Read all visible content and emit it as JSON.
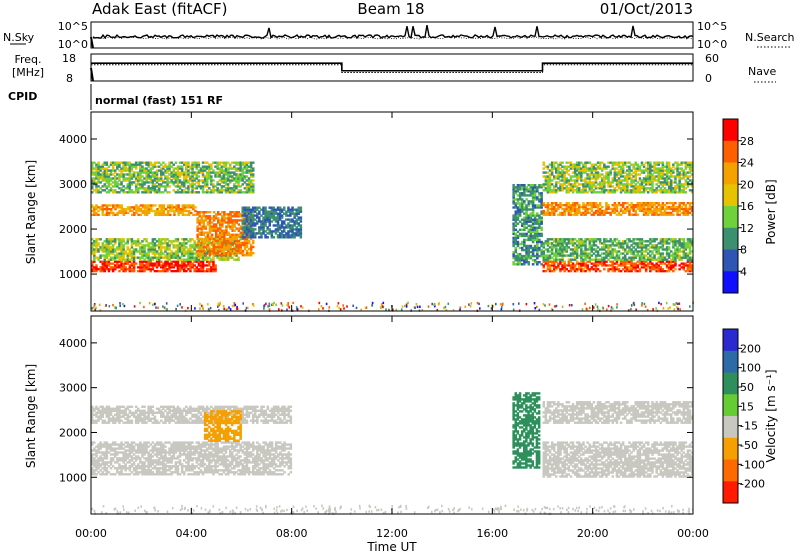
{
  "header": {
    "title": "Adak East (fitACF)",
    "beam": "Beam 18",
    "date": "01/Oct/2013"
  },
  "noise_panel": {
    "left_label": "N.Sky",
    "right_label": "N.Search",
    "ticks": [
      "10^5",
      "10^0"
    ]
  },
  "freq_panel": {
    "left_label_1": "Freq.",
    "left_label_2": "[MHz]",
    "left_ticks": [
      "18",
      "8"
    ],
    "right_label": "Nave",
    "right_ticks": [
      "60",
      "0"
    ],
    "cpid_label": "CPID",
    "mode_text": "normal (fast) 151 RF"
  },
  "chart_data": [
    {
      "type": "line",
      "name": "frequency-nave-timeline",
      "x_unit": "hours UT",
      "xlim": [
        0,
        24
      ],
      "freq_ylim": [
        8,
        18
      ],
      "nave_ylim": [
        0,
        60
      ],
      "freq_steps": [
        {
          "x": 0,
          "y": 14.6
        },
        {
          "x": 10,
          "y": 11.8
        },
        {
          "x": 18,
          "y": 14.6
        },
        {
          "x": 24,
          "y": 14.6
        }
      ],
      "nave_steps": [
        {
          "x": 0,
          "y": 36
        },
        {
          "x": 10,
          "y": 19
        },
        {
          "x": 18,
          "y": 36
        },
        {
          "x": 24,
          "y": 36
        }
      ]
    },
    {
      "type": "heatmap",
      "name": "power",
      "ylabel": "Slant Range [km]",
      "y_ticks": [
        "4000",
        "3000",
        "2000",
        "1000"
      ],
      "ylim": [
        180,
        4600
      ],
      "colorbar_label": "Power [dB]",
      "colorbar_ticks": [
        "28",
        "24",
        "20",
        "16",
        "12",
        "8",
        "4"
      ],
      "colorbar_colors": [
        "#ff0000",
        "#ff5f00",
        "#f5a200",
        "#e6c200",
        "#6fd13b",
        "#3c8f6f",
        "#2f56b4",
        "#1010ff"
      ],
      "bands": [
        {
          "x0": 0.0,
          "x1": 5.0,
          "r0": 1050,
          "r1": 1300,
          "value": 26
        },
        {
          "x0": 0.0,
          "x1": 6.0,
          "r0": 1300,
          "r1": 1800,
          "value": 14
        },
        {
          "x0": 0.0,
          "x1": 4.2,
          "r0": 2300,
          "r1": 2550,
          "value": 20
        },
        {
          "x0": 4.2,
          "x1": 6.5,
          "r0": 1400,
          "r1": 2400,
          "value": 22
        },
        {
          "x0": 6.0,
          "x1": 8.4,
          "r0": 1800,
          "r1": 2500,
          "value": 8
        },
        {
          "x0": 0.0,
          "x1": 6.5,
          "r0": 2800,
          "r1": 3500,
          "value": 13
        },
        {
          "x0": 16.8,
          "x1": 18.0,
          "r0": 1200,
          "r1": 3000,
          "value": 10
        },
        {
          "x0": 18.0,
          "x1": 24.0,
          "r0": 1050,
          "r1": 1300,
          "value": 25
        },
        {
          "x0": 18.0,
          "x1": 24.0,
          "r0": 1300,
          "r1": 1800,
          "value": 12
        },
        {
          "x0": 18.0,
          "x1": 24.0,
          "r0": 2300,
          "r1": 2600,
          "value": 21
        },
        {
          "x0": 18.0,
          "x1": 24.0,
          "r0": 2800,
          "r1": 3500,
          "value": 14
        }
      ]
    },
    {
      "type": "heatmap",
      "name": "velocity",
      "ylabel": "Slant Range [km]",
      "y_ticks": [
        "4000",
        "3000",
        "2000",
        "1000"
      ],
      "ylim": [
        180,
        4600
      ],
      "colorbar_label": "Velocity [m s⁻¹]",
      "colorbar_ticks": [
        "200",
        "100",
        "50",
        "15",
        "-15",
        "-50",
        "-100",
        "-200"
      ],
      "colorbar_colors": [
        "#2a2ad0",
        "#2c6aa8",
        "#2f8f5c",
        "#66cc33",
        "#c8c8c0",
        "#f5a000",
        "#ff6a00",
        "#ff1a00"
      ],
      "bands": [
        {
          "x0": 0.0,
          "x1": 8.0,
          "r0": 1050,
          "r1": 1800,
          "value": 0
        },
        {
          "x0": 0.0,
          "x1": 8.0,
          "r0": 2200,
          "r1": 2600,
          "value": 0
        },
        {
          "x0": 4.5,
          "x1": 6.0,
          "r0": 1800,
          "r1": 2500,
          "value": -40
        },
        {
          "x0": 16.8,
          "x1": 17.9,
          "r0": 1200,
          "r1": 2900,
          "value": 40
        },
        {
          "x0": 18.0,
          "x1": 24.0,
          "r0": 1000,
          "r1": 1800,
          "value": 0
        },
        {
          "x0": 18.0,
          "x1": 24.0,
          "r0": 2200,
          "r1": 2700,
          "value": 0
        }
      ]
    }
  ],
  "x_axis": {
    "ticks": [
      "00:00",
      "04:00",
      "08:00",
      "12:00",
      "16:00",
      "20:00",
      "00:00"
    ],
    "label": "Time UT"
  }
}
